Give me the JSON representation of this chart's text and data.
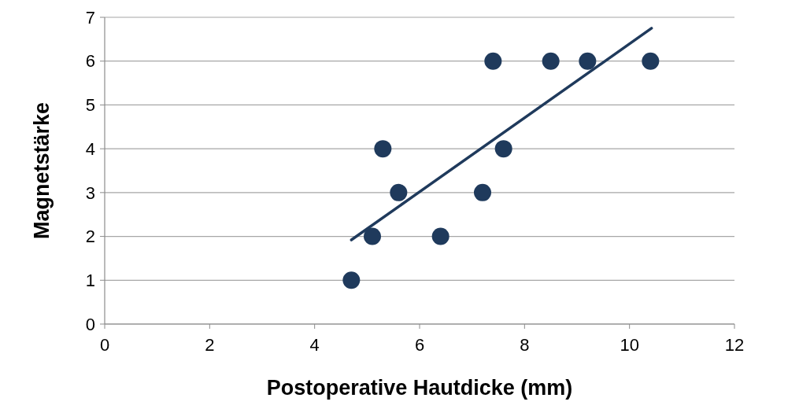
{
  "chart_data": {
    "type": "scatter",
    "xlabel": "Postoperative Hautdicke (mm)",
    "ylabel": "Magnetstärke",
    "xlim": [
      0,
      12
    ],
    "xticks": [
      0,
      2,
      4,
      6,
      8,
      10,
      12
    ],
    "ylim": [
      0,
      7
    ],
    "yticks": [
      0,
      1,
      2,
      3,
      4,
      5,
      6,
      7
    ],
    "grid": "y",
    "marker": "circle",
    "series": [
      {
        "color": "#1f3a5c",
        "x": [
          4.7,
          5.1,
          5.3,
          5.6,
          6.4,
          7.2,
          7.4,
          7.6,
          8.5,
          9.2,
          10.4
        ],
        "values": [
          1,
          2,
          4,
          3,
          2,
          3,
          6,
          4,
          6,
          6,
          6
        ]
      },
      {
        "type": "line",
        "color": "#1f3a5c",
        "x": [
          4.7,
          10.42
        ],
        "values": [
          1.92,
          6.75
        ],
        "line_style": "solid",
        "marker": "none"
      }
    ]
  }
}
